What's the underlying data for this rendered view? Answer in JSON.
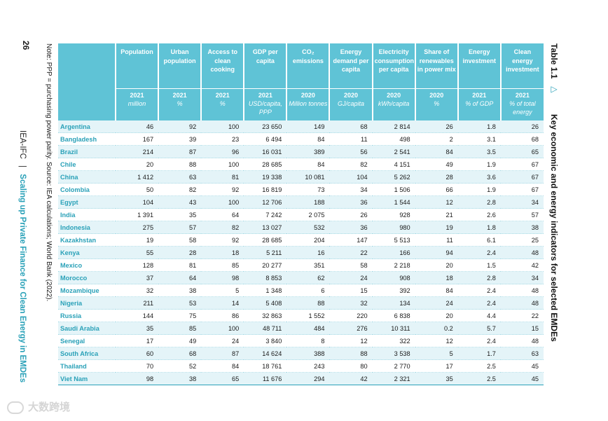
{
  "page": {
    "number": "26",
    "footer_org": "IEA-IFC",
    "footer_sep": "|",
    "footer_title": "Scaling up Private Finance for Clean Energy in EMDEs",
    "note": "Note: PPP = purchasing power parity. Source: IEA calculations; World Bank (2022).",
    "table_label": "Table 1.1",
    "table_marker": "▷",
    "table_title": "Key economic and energy indicators for selected EMDEs",
    "watermark": "大数跨境",
    "accent_color": "#2aa1b8",
    "header_color": "#5fc3d6"
  },
  "table": {
    "columns": [
      {
        "label": "Population",
        "year": "2021",
        "unit": "million"
      },
      {
        "label": "Urban population",
        "year": "2021",
        "unit": "%"
      },
      {
        "label": "Access to clean cooking",
        "year": "2021",
        "unit": "%"
      },
      {
        "label": "GDP per capita",
        "year": "2021",
        "unit": "USD/capita, PPP"
      },
      {
        "label": "CO₂ emissions",
        "year": "2020",
        "unit": "Million tonnes"
      },
      {
        "label": "Energy demand per capita",
        "year": "2020",
        "unit": "GJ/capita"
      },
      {
        "label": "Electricity consumption per capita",
        "year": "2020",
        "unit": "kWh/capita"
      },
      {
        "label": "Share of renewables in power mix",
        "year": "2020",
        "unit": "%"
      },
      {
        "label": "Energy investment",
        "year": "2021",
        "unit": "% of GDP"
      },
      {
        "label": "Clean energy investment",
        "year": "2021",
        "unit": "% of total energy"
      }
    ],
    "rows": [
      {
        "country": "Argentina",
        "values": [
          "46",
          "92",
          "100",
          "23 650",
          "149",
          "68",
          "2 814",
          "26",
          "1.8",
          "26"
        ]
      },
      {
        "country": "Bangladesh",
        "values": [
          "167",
          "39",
          "23",
          "6 494",
          "84",
          "11",
          "498",
          "2",
          "3.1",
          "68"
        ]
      },
      {
        "country": "Brazil",
        "values": [
          "214",
          "87",
          "96",
          "16 031",
          "389",
          "56",
          "2 541",
          "84",
          "3.5",
          "65"
        ]
      },
      {
        "country": "Chile",
        "values": [
          "20",
          "88",
          "100",
          "28 685",
          "84",
          "82",
          "4 151",
          "49",
          "1.9",
          "67"
        ]
      },
      {
        "country": "China",
        "values": [
          "1 412",
          "63",
          "81",
          "19 338",
          "10 081",
          "104",
          "5 262",
          "28",
          "3.6",
          "67"
        ]
      },
      {
        "country": "Colombia",
        "values": [
          "50",
          "82",
          "92",
          "16 819",
          "73",
          "34",
          "1 506",
          "66",
          "1.9",
          "67"
        ]
      },
      {
        "country": "Egypt",
        "values": [
          "104",
          "43",
          "100",
          "12 706",
          "188",
          "36",
          "1 544",
          "12",
          "2.8",
          "34"
        ]
      },
      {
        "country": "India",
        "values": [
          "1 391",
          "35",
          "64",
          "7 242",
          "2 075",
          "26",
          "928",
          "21",
          "2.6",
          "57"
        ]
      },
      {
        "country": "Indonesia",
        "values": [
          "275",
          "57",
          "82",
          "13 027",
          "532",
          "36",
          "980",
          "19",
          "1.8",
          "38"
        ]
      },
      {
        "country": "Kazakhstan",
        "values": [
          "19",
          "58",
          "92",
          "28 685",
          "204",
          "147",
          "5 513",
          "11",
          "6.1",
          "25"
        ]
      },
      {
        "country": "Kenya",
        "values": [
          "55",
          "28",
          "18",
          "5 211",
          "16",
          "22",
          "166",
          "94",
          "2.4",
          "48"
        ]
      },
      {
        "country": "Mexico",
        "values": [
          "128",
          "81",
          "85",
          "20 277",
          "351",
          "58",
          "2 218",
          "20",
          "1.5",
          "42"
        ]
      },
      {
        "country": "Morocco",
        "values": [
          "37",
          "64",
          "98",
          "8 853",
          "62",
          "24",
          "908",
          "18",
          "2.8",
          "34"
        ]
      },
      {
        "country": "Mozambique",
        "values": [
          "32",
          "38",
          "5",
          "1 348",
          "6",
          "15",
          "392",
          "84",
          "2.4",
          "48"
        ]
      },
      {
        "country": "Nigeria",
        "values": [
          "211",
          "53",
          "14",
          "5 408",
          "88",
          "32",
          "134",
          "24",
          "2.4",
          "48"
        ]
      },
      {
        "country": "Russia",
        "values": [
          "144",
          "75",
          "86",
          "32 863",
          "1 552",
          "220",
          "6 838",
          "20",
          "4.4",
          "22"
        ]
      },
      {
        "country": "Saudi Arabia",
        "values": [
          "35",
          "85",
          "100",
          "48 711",
          "484",
          "276",
          "10 311",
          "0.2",
          "5.7",
          "15"
        ]
      },
      {
        "country": "Senegal",
        "values": [
          "17",
          "49",
          "24",
          "3 840",
          "8",
          "12",
          "322",
          "12",
          "2.4",
          "48"
        ]
      },
      {
        "country": "South Africa",
        "values": [
          "60",
          "68",
          "87",
          "14 624",
          "388",
          "88",
          "3 538",
          "5",
          "1.7",
          "63"
        ]
      },
      {
        "country": "Thailand",
        "values": [
          "70",
          "52",
          "84",
          "18 761",
          "243",
          "80",
          "2 770",
          "17",
          "2.5",
          "45"
        ]
      },
      {
        "country": "Viet Nam",
        "values": [
          "98",
          "38",
          "65",
          "11 676",
          "294",
          "42",
          "2 321",
          "35",
          "2.5",
          "45"
        ]
      }
    ]
  }
}
